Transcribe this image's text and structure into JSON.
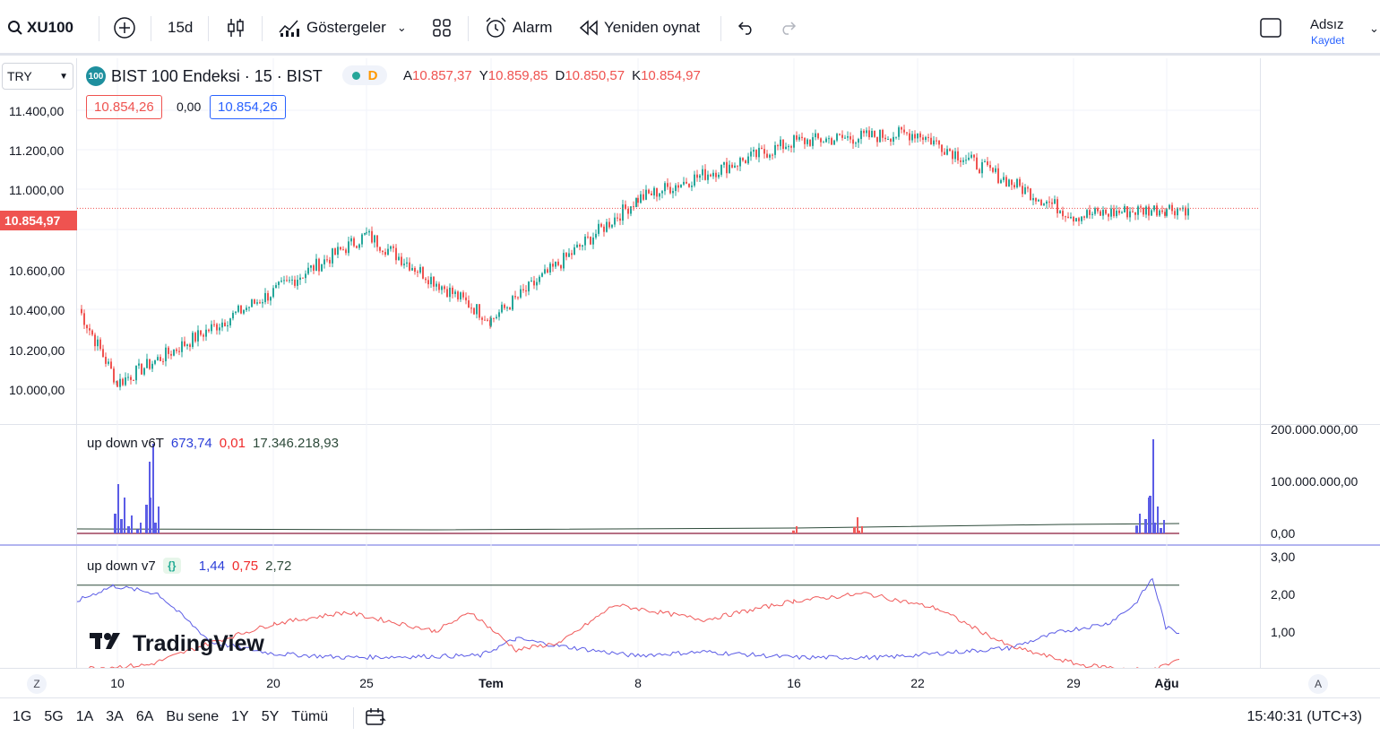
{
  "toolbar": {
    "symbol": "XU100",
    "interval": "15d",
    "indicators_label": "Göstergeler",
    "alert_label": "Alarm",
    "replay_label": "Yeniden oynat",
    "user_name": "Adsız",
    "save_label": "Kaydet"
  },
  "chart": {
    "currency": "TRY",
    "title": "BIST 100 Endeksi · 15 · BIST",
    "status_letter": "D",
    "ohlc": [
      {
        "key": "A",
        "value": "10.857,37"
      },
      {
        "key": "Y",
        "value": "10.859,85"
      },
      {
        "key": "D",
        "value": "10.850,57"
      },
      {
        "key": "K",
        "value": "10.854,97"
      }
    ],
    "sell_price": "10.854,26",
    "spread": "0,00",
    "buy_price": "10.854,26",
    "last_price_tag": "10.854,97",
    "price_axis": [
      "11.400,00",
      "11.200,00",
      "11.000,00",
      "10.600,00",
      "10.400,00",
      "10.200,00",
      "10.000,00"
    ],
    "indicator1": {
      "name": "up down v6T",
      "v1": "673,74",
      "v2": "0,01",
      "v3": "17.346.218,93",
      "axis": [
        "200.000.000,00",
        "100.000.000,00",
        "0,00"
      ]
    },
    "indicator2": {
      "name": "up down v7",
      "v1": "1,44",
      "v2": "0,75",
      "v3": "2,72",
      "axis": [
        "3,00",
        "2,00",
        "1,00"
      ]
    },
    "time_axis": [
      {
        "label": "10",
        "bold": false
      },
      {
        "label": "20",
        "bold": false
      },
      {
        "label": "25",
        "bold": false
      },
      {
        "label": "Tem",
        "bold": true
      },
      {
        "label": "8",
        "bold": false
      },
      {
        "label": "16",
        "bold": false
      },
      {
        "label": "22",
        "bold": false
      },
      {
        "label": "29",
        "bold": false
      },
      {
        "label": "Ağu",
        "bold": true
      }
    ],
    "axis_buttons": {
      "left": "Z",
      "right": "A"
    },
    "brand": "TradingView"
  },
  "chart_data": {
    "type": "line",
    "symbol": "XU100",
    "ylim": [
      9900,
      11500
    ],
    "x": [
      "10",
      "20",
      "25",
      "Tem",
      "8",
      "16",
      "22",
      "29",
      "Ağu"
    ],
    "series": [
      {
        "name": "BIST 100 Endeksi",
        "values": [
          10030,
          10460,
          10730,
          10330,
          10900,
          11170,
          11210,
          10820,
          10855
        ]
      }
    ],
    "last_price": 10854.97
  },
  "bottom": {
    "ranges": [
      "1G",
      "5G",
      "1A",
      "3A",
      "6A",
      "Bu sene",
      "1Y",
      "5Y",
      "Tümü"
    ],
    "clock": "15:40:31 (UTC+3)"
  },
  "colors": {
    "up": "#26a69a",
    "down": "#ef5350",
    "blue": "#2962ff",
    "indicator_blue": "#5b5ce6",
    "indicator_red": "#f05a5a"
  }
}
